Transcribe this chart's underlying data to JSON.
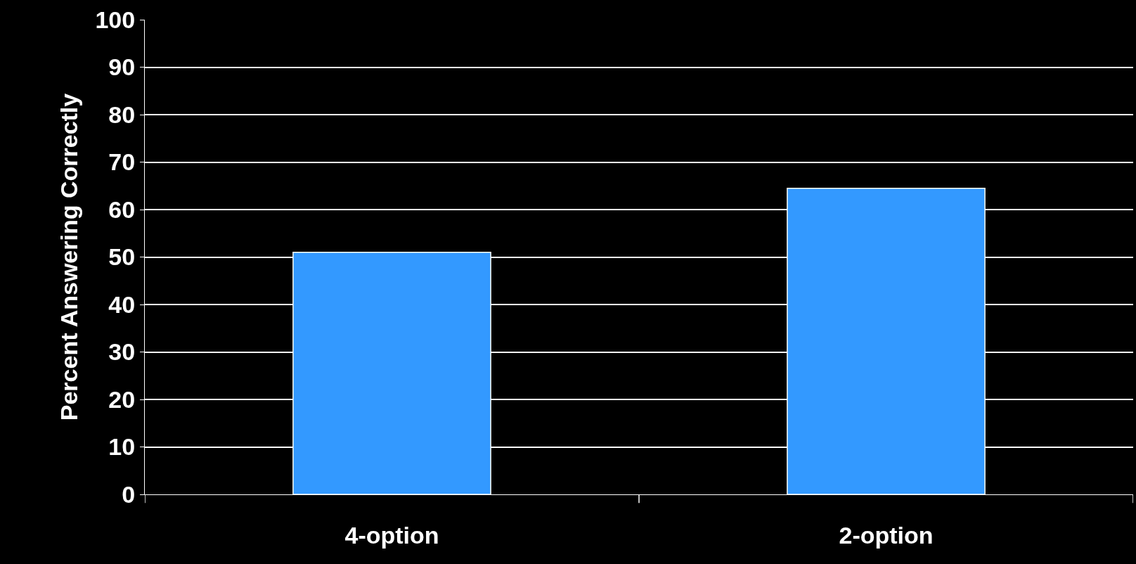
{
  "chart_data": {
    "type": "bar",
    "ylabel": "Percent Answering Correctly",
    "categories": [
      "4-option",
      "2-option"
    ],
    "values": [
      51,
      64.5
    ],
    "color": "#3399ff",
    "ylim": [
      0,
      100
    ],
    "yticks": [
      0,
      10,
      20,
      30,
      40,
      50,
      60,
      70,
      80,
      90,
      100
    ],
    "grid": "y"
  }
}
